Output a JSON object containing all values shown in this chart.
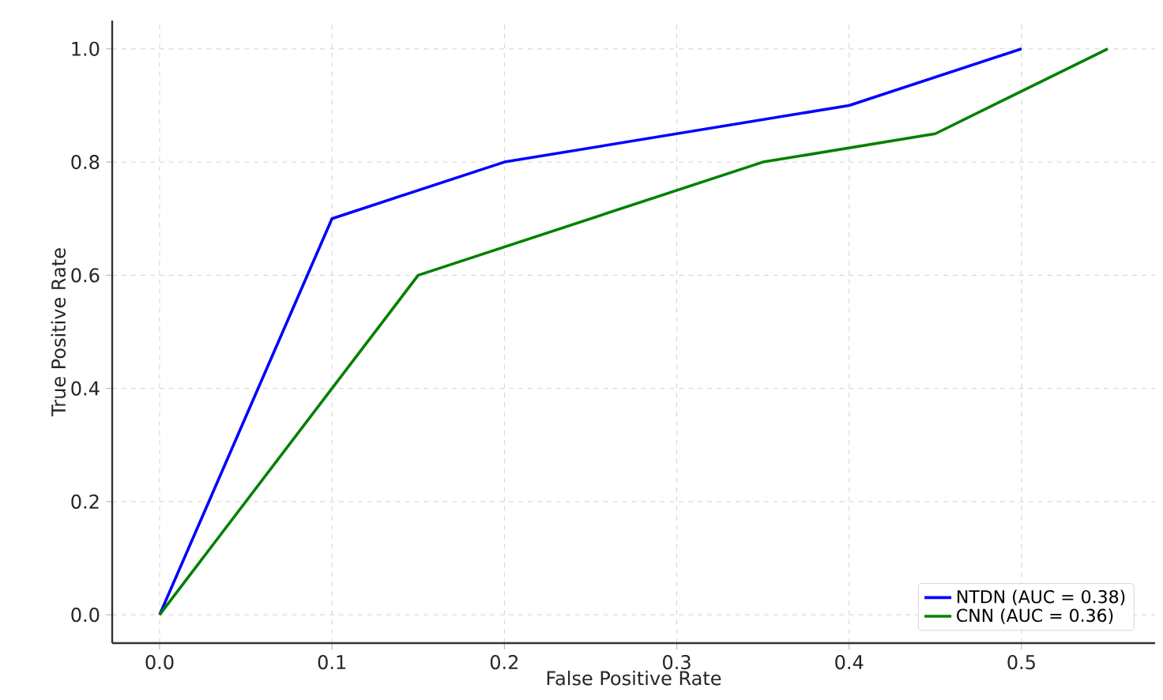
{
  "chart_data": {
    "type": "line",
    "xlabel": "False Positive Rate",
    "ylabel": "True Positive Rate",
    "xlim": [
      -0.0275,
      0.5775
    ],
    "ylim": [
      -0.05,
      1.05
    ],
    "xticks": [
      {
        "value": 0,
        "label": "0.0"
      },
      0.1,
      0.2,
      0.3,
      0.4,
      0.5
    ],
    "yticks": [
      {
        "value": 0,
        "label": "0.0"
      },
      0.2,
      0.4,
      0.6,
      0.8,
      {
        "value": 1,
        "label": "1.0"
      }
    ],
    "grid": true,
    "legend": "bottom right",
    "line_style": "solid",
    "series": [
      {
        "name": "NTDN (AUC = 0.38)",
        "color": "#0000ff",
        "x": [
          0,
          0.1,
          0.2,
          0.4,
          0.5
        ],
        "values": [
          0,
          0.7,
          0.8,
          0.9,
          1.0
        ]
      },
      {
        "name": "CNN (AUC = 0.36)",
        "color": "#008000",
        "x": [
          0,
          0.15,
          0.35,
          0.45,
          0.55
        ],
        "values": [
          0,
          0.6,
          0.8,
          0.85,
          1.0
        ]
      }
    ]
  }
}
